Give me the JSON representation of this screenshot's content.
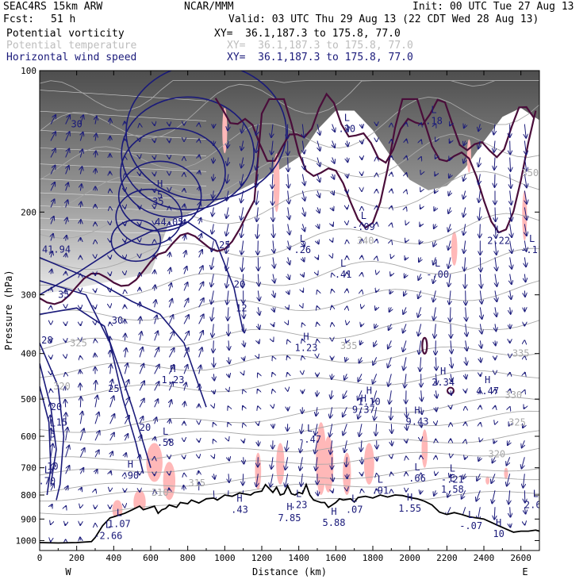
{
  "header": {
    "model": "SEAC4RS 15km ARW",
    "org": "NCAR/MMM",
    "init": "Init: 00 UTC Tue 27 Aug 13",
    "fcst_label": "Fcst:",
    "fcst_value": "51 h",
    "valid": "Valid: 03 UTC Thu 29 Aug 13 (22 CDT Wed 28 Aug 13)",
    "fields": [
      {
        "name": "Potential vorticity",
        "xy": "XY=  36.1,187.3 to 175.8, 77.0",
        "color": "#000000"
      },
      {
        "name": "Potential temperature",
        "xy": "XY=  36.1,187.3 to 175.8, 77.0",
        "color": "#bdbdbd"
      },
      {
        "name": "Horizontal wind speed",
        "xy": "XY=  36.1,187.3 to 175.8, 77.0",
        "color": "#1a1a7a"
      }
    ]
  },
  "chart_data": {
    "type": "cross-section",
    "ylabel": "Pressure (hPa)",
    "xlabel": "Distance (km)",
    "x_ticks": [
      0,
      200,
      400,
      600,
      800,
      1000,
      1200,
      1400,
      1600,
      1800,
      2000,
      2200,
      2400,
      2600
    ],
    "y_ticks": [
      100,
      200,
      300,
      400,
      500,
      600,
      700,
      800,
      900,
      1000
    ],
    "xlim": [
      0,
      2700
    ],
    "ylim": [
      1050,
      100
    ],
    "y_scale": "log",
    "left_end": "W",
    "right_end": "E",
    "colors": {
      "pv": "#4a0d3a",
      "theta": "#a8a8a8",
      "wind": "#1a1a7a",
      "terrain": "#000000",
      "shade": "#ffb8b8",
      "labels": "#1a1a7a"
    },
    "terrain": [
      [
        0,
        1010
      ],
      [
        100,
        1012
      ],
      [
        200,
        1010
      ],
      [
        280,
        1005
      ],
      [
        300,
        985
      ],
      [
        340,
        930
      ],
      [
        380,
        895
      ],
      [
        400,
        890
      ],
      [
        440,
        880
      ],
      [
        460,
        875
      ],
      [
        500,
        860
      ],
      [
        540,
        845
      ],
      [
        560,
        860
      ],
      [
        600,
        850
      ],
      [
        620,
        845
      ],
      [
        640,
        875
      ],
      [
        660,
        860
      ],
      [
        680,
        855
      ],
      [
        700,
        840
      ],
      [
        740,
        850
      ],
      [
        760,
        830
      ],
      [
        800,
        835
      ],
      [
        820,
        820
      ],
      [
        860,
        832
      ],
      [
        900,
        815
      ],
      [
        940,
        812
      ],
      [
        960,
        820
      ],
      [
        1000,
        800
      ],
      [
        1040,
        805
      ],
      [
        1080,
        792
      ],
      [
        1100,
        795
      ],
      [
        1140,
        800
      ],
      [
        1160,
        790
      ],
      [
        1200,
        785
      ],
      [
        1220,
        760
      ],
      [
        1240,
        775
      ],
      [
        1260,
        790
      ],
      [
        1280,
        770
      ],
      [
        1300,
        800
      ],
      [
        1320,
        795
      ],
      [
        1340,
        765
      ],
      [
        1360,
        795
      ],
      [
        1380,
        800
      ],
      [
        1400,
        790
      ],
      [
        1420,
        795
      ],
      [
        1440,
        760
      ],
      [
        1460,
        800
      ],
      [
        1480,
        820
      ],
      [
        1500,
        825
      ],
      [
        1520,
        830
      ],
      [
        1540,
        830
      ],
      [
        1560,
        850
      ],
      [
        1580,
        840
      ],
      [
        1600,
        830
      ],
      [
        1620,
        815
      ],
      [
        1640,
        820
      ],
      [
        1680,
        815
      ],
      [
        1700,
        828
      ],
      [
        1720,
        810
      ],
      [
        1760,
        805
      ],
      [
        1800,
        812
      ],
      [
        1840,
        800
      ],
      [
        1880,
        808
      ],
      [
        1920,
        800
      ],
      [
        1960,
        802
      ],
      [
        2000,
        810
      ],
      [
        2040,
        815
      ],
      [
        2080,
        825
      ],
      [
        2120,
        840
      ],
      [
        2160,
        870
      ],
      [
        2200,
        880
      ],
      [
        2240,
        872
      ],
      [
        2280,
        880
      ],
      [
        2320,
        890
      ],
      [
        2360,
        895
      ],
      [
        2400,
        900
      ],
      [
        2440,
        915
      ],
      [
        2480,
        930
      ],
      [
        2520,
        945
      ],
      [
        2560,
        960
      ],
      [
        2600,
        955
      ],
      [
        2640,
        955
      ],
      [
        2680,
        950
      ],
      [
        2700,
        955
      ]
    ],
    "theta_labels": [
      {
        "x": 1760,
        "p": 230,
        "text": "340"
      },
      {
        "x": 1670,
        "p": 385,
        "text": "335"
      },
      {
        "x": 2600,
        "p": 400,
        "text": "335"
      },
      {
        "x": 2560,
        "p": 490,
        "text": "330"
      },
      {
        "x": 2580,
        "p": 560,
        "text": "325"
      },
      {
        "x": 2470,
        "p": 655,
        "text": "320"
      },
      {
        "x": 2650,
        "p": 165,
        "text": "350"
      },
      {
        "x": 850,
        "p": 755,
        "text": "315"
      },
      {
        "x": 650,
        "p": 790,
        "text": "310"
      },
      {
        "x": 120,
        "p": 470,
        "text": "320"
      },
      {
        "x": 210,
        "p": 380,
        "text": "325"
      }
    ],
    "wind_labels": [
      {
        "x": 200,
        "p": 130,
        "text": "30"
      },
      {
        "x": 640,
        "p": 190,
        "text": "35"
      },
      {
        "x": 90,
        "p": 240,
        "text": "41.94"
      },
      {
        "x": 700,
        "p": 210,
        "text": "44.05"
      },
      {
        "x": 1000,
        "p": 235,
        "text": "25"
      },
      {
        "x": 1080,
        "p": 285,
        "text": "20"
      },
      {
        "x": 1090,
        "p": 320,
        "text": "12"
      },
      {
        "x": 130,
        "p": 300,
        "text": "35"
      },
      {
        "x": 420,
        "p": 340,
        "text": "30"
      },
      {
        "x": 40,
        "p": 375,
        "text": "28"
      },
      {
        "x": 400,
        "p": 475,
        "text": "25"
      },
      {
        "x": 90,
        "p": 520,
        "text": "20"
      },
      {
        "x": 120,
        "p": 560,
        "text": "15"
      },
      {
        "x": 570,
        "p": 575,
        "text": "20"
      },
      {
        "x": 70,
        "p": 695,
        "text": "10"
      }
    ],
    "extrema": [
      {
        "x": 720,
        "p": 445,
        "type": "H",
        "value": "1.23"
      },
      {
        "x": 1440,
        "p": 380,
        "type": "H",
        "value": "1.23"
      },
      {
        "x": 1640,
        "p": 265,
        "type": "L",
        "value": ".41"
      },
      {
        "x": 1420,
        "p": 235,
        "type": "L",
        "value": ".26"
      },
      {
        "x": 1750,
        "p": 210,
        "type": "L",
        "value": "-.09"
      },
      {
        "x": 2150,
        "p": 265,
        "type": "L",
        "value": "-.00"
      },
      {
        "x": 2480,
        "p": 225,
        "type": "L",
        "value": "2.22"
      },
      {
        "x": 2660,
        "p": 235,
        "type": "L",
        "value": "-.11"
      },
      {
        "x": 2180,
        "p": 450,
        "type": "H",
        "value": "2.34"
      },
      {
        "x": 2420,
        "p": 470,
        "type": "H",
        "value": "4.47"
      },
      {
        "x": 1750,
        "p": 515,
        "type": "H",
        "value": "9.37"
      },
      {
        "x": 1780,
        "p": 495,
        "type": "H",
        "value": "1.10"
      },
      {
        "x": 2040,
        "p": 545,
        "type": "H",
        "value": "9.43"
      },
      {
        "x": 1460,
        "p": 595,
        "type": "L",
        "value": "-.47"
      },
      {
        "x": 680,
        "p": 605,
        "type": "L",
        "value": ".58"
      },
      {
        "x": 490,
        "p": 710,
        "type": "H",
        "value": ".90"
      },
      {
        "x": 2040,
        "p": 720,
        "type": "L",
        "value": ".66"
      },
      {
        "x": 2230,
        "p": 725,
        "type": "L",
        "value": "-.21"
      },
      {
        "x": 2230,
        "p": 760,
        "type": "E",
        "value": "1.58"
      },
      {
        "x": 1840,
        "p": 765,
        "type": "L",
        "value": ".91"
      },
      {
        "x": 1400,
        "p": 820,
        "type": "L",
        "value": ".23"
      },
      {
        "x": 1080,
        "p": 840,
        "type": "H",
        "value": ".43"
      },
      {
        "x": 1350,
        "p": 875,
        "type": "H",
        "value": "7.85"
      },
      {
        "x": 1590,
        "p": 895,
        "type": "H",
        "value": "5.88"
      },
      {
        "x": 2000,
        "p": 835,
        "type": "H",
        "value": "1.55"
      },
      {
        "x": 2680,
        "p": 820,
        "type": "L",
        "value": "2.63"
      },
      {
        "x": 430,
        "p": 900,
        "type": "L",
        "value": "1.07"
      },
      {
        "x": 370,
        "p": 955,
        "type": "L",
        "value": "-2.66"
      },
      {
        "x": 2330,
        "p": 910,
        "type": "L",
        "value": "-.07"
      },
      {
        "x": 2480,
        "p": 945,
        "type": "H",
        "value": "10"
      },
      {
        "x": 1700,
        "p": 840,
        "type": "L",
        "value": ".07"
      },
      {
        "x": 1660,
        "p": 130,
        "type": "L",
        "value": ".20"
      },
      {
        "x": 2130,
        "p": 125,
        "type": "L",
        "value": ".18"
      },
      {
        "x": 650,
        "p": 180,
        "type": "H",
        "value": "5"
      },
      {
        "x": 70,
        "p": 580,
        "type": "L",
        "value": "5"
      },
      {
        "x": 40,
        "p": 730,
        "type": "L",
        "value": ".70"
      }
    ]
  }
}
